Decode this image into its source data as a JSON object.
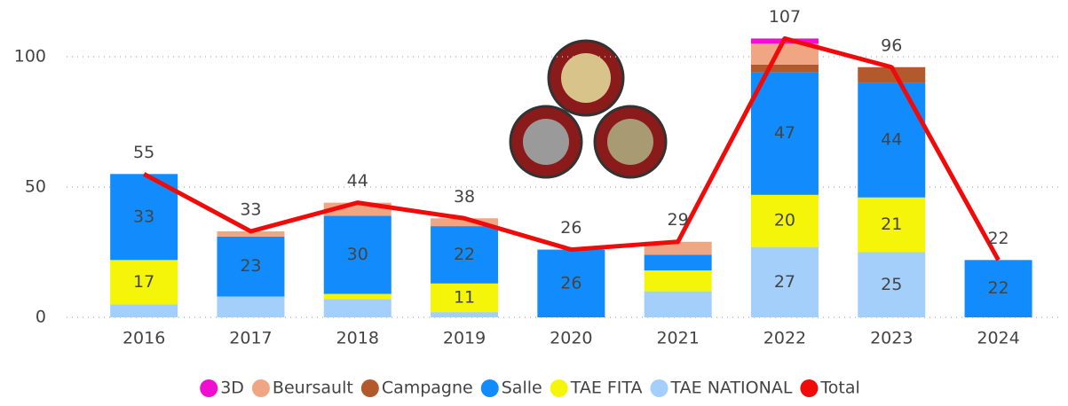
{
  "chart_data": {
    "type": "stacked-bar-line",
    "categories": [
      "2016",
      "2017",
      "2018",
      "2019",
      "2020",
      "2021",
      "2022",
      "2023",
      "2024"
    ],
    "series": [
      {
        "name": "TAE NATIONAL",
        "color": "#a3cffa",
        "values": [
          5,
          8,
          7,
          2,
          0,
          10,
          27,
          25,
          0
        ],
        "value_labels": [
          null,
          null,
          null,
          null,
          null,
          null,
          "27",
          "25",
          null
        ]
      },
      {
        "name": "TAE FITA",
        "color": "#f5f50a",
        "values": [
          17,
          0,
          2,
          11,
          0,
          8,
          20,
          21,
          0
        ],
        "value_labels": [
          "17",
          null,
          null,
          "11",
          null,
          null,
          "20",
          "21",
          null
        ]
      },
      {
        "name": "Salle",
        "color": "#128cfc",
        "values": [
          33,
          23,
          30,
          22,
          26,
          6,
          47,
          44,
          22
        ],
        "value_labels": [
          "33",
          "23",
          "30",
          "22",
          "26",
          null,
          "47",
          "44",
          "22"
        ]
      },
      {
        "name": "Campagne",
        "color": "#b35a2c",
        "values": [
          0,
          0,
          0,
          0,
          0,
          0,
          3,
          6,
          0
        ]
      },
      {
        "name": "Beursault",
        "color": "#f0a583",
        "values": [
          0,
          2,
          5,
          3,
          0,
          5,
          8,
          0,
          0
        ]
      },
      {
        "name": "3D",
        "color": "#f00fd0",
        "values": [
          0,
          0,
          0,
          0,
          0,
          0,
          2,
          0,
          0
        ]
      }
    ],
    "total": {
      "name": "Total",
      "color": "#f00a0a",
      "values": [
        55,
        33,
        44,
        38,
        26,
        29,
        107,
        96,
        22
      ]
    },
    "legend_order": [
      5,
      4,
      3,
      2,
      1,
      0
    ],
    "ylim": [
      0,
      110
    ],
    "yticks": [
      0,
      50,
      100
    ],
    "grid": true,
    "legend": "bottom"
  }
}
